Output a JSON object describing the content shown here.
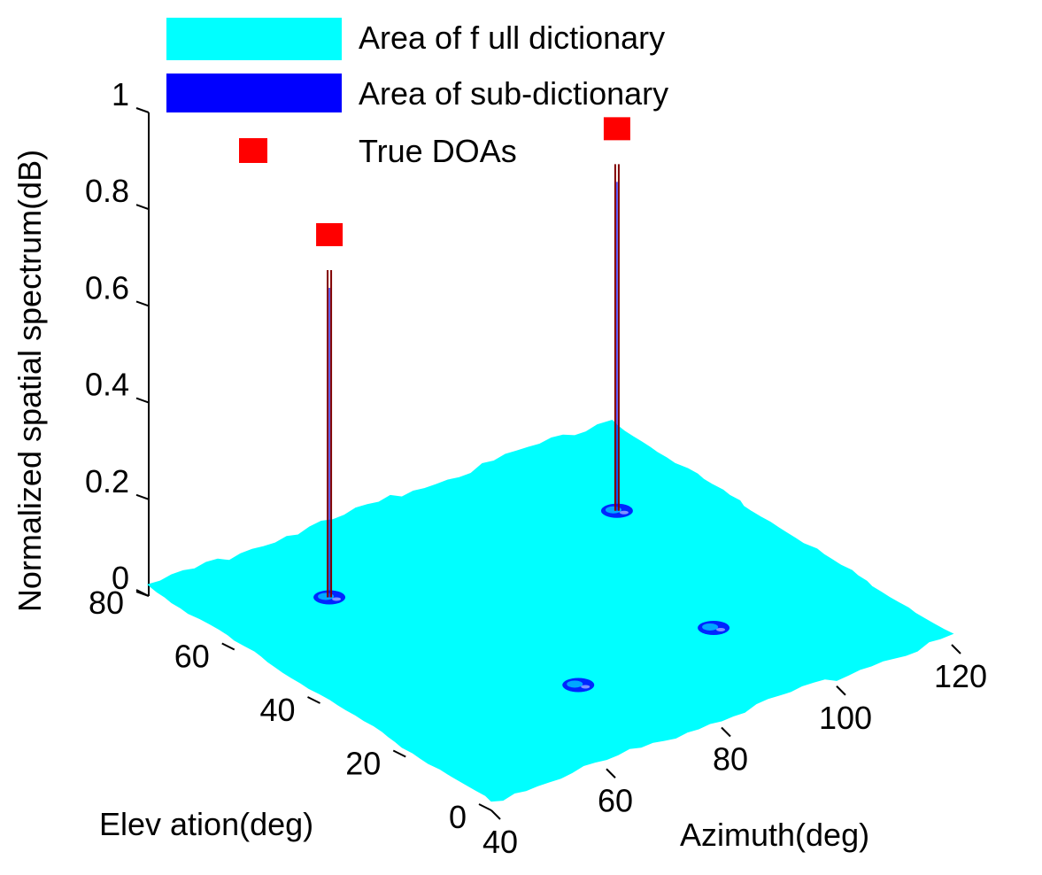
{
  "chart_data": {
    "type": "surface3d",
    "title": "",
    "colors": {
      "full_dictionary": "#00ffff",
      "sub_dictionary": "#0000ff",
      "true_doa": "#ff0000",
      "stem_line": "#800000"
    },
    "legend": {
      "placement": "top-left",
      "entries": [
        {
          "label": "Area of  f ull dictionary",
          "marker": "cyan-patch"
        },
        {
          "label": "Area of  sub-dictionary",
          "marker": "blue-patch"
        },
        {
          "label": "True DOAs",
          "marker": "red-square"
        }
      ]
    },
    "axes": {
      "azimuth": {
        "label": "Azimuth(deg)",
        "range": [
          40,
          120
        ],
        "ticks": [
          "40",
          "60",
          "80",
          "100",
          "120"
        ]
      },
      "elevation": {
        "label": "Elev ation(deg)",
        "range": [
          0,
          80
        ],
        "ticks": [
          "0",
          "20",
          "40",
          "60",
          "80"
        ]
      },
      "z": {
        "label": "Normalized spatial spectrum(dB)",
        "range": [
          0,
          1
        ],
        "ticks": [
          "0",
          "0.2",
          "0.4",
          "0.6",
          "0.8",
          "1"
        ]
      }
    },
    "surface": {
      "name": "Area of full dictionary",
      "azimuth_range": [
        40,
        120
      ],
      "elevation_range": [
        0,
        80
      ],
      "z": 0.02
    },
    "sub_dictionary_regions": [
      {
        "azimuth": 58,
        "elevation": 62
      },
      {
        "azimuth": 70,
        "elevation": 20
      },
      {
        "azimuth": 105,
        "elevation": 58
      },
      {
        "azimuth": 95,
        "elevation": 22
      }
    ],
    "true_doas": [
      {
        "azimuth": 58,
        "elevation": 62,
        "value": 0.77
      },
      {
        "azimuth": 105,
        "elevation": 58,
        "value": 0.81
      }
    ]
  }
}
